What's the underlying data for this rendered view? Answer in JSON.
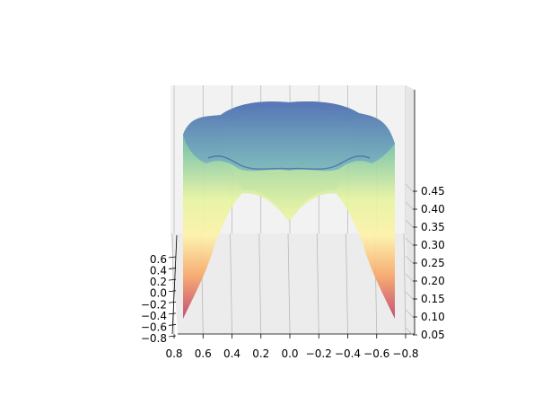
{
  "chart_data": {
    "type": "surface3d",
    "colormap": "Spectral",
    "x_axis": {
      "label": "",
      "ticks": [
        "0.8",
        "0.6",
        "0.4",
        "0.2",
        "0.0",
        "−0.2",
        "−0.4",
        "−0.6",
        "−0.8"
      ],
      "range": [
        -0.8,
        0.8
      ]
    },
    "y_axis": {
      "label": "",
      "ticks": [
        "−0.8",
        "−0.6",
        "−0.4",
        "−0.2",
        "0.0",
        "0.2",
        "0.4",
        "0.6"
      ],
      "range": [
        -0.8,
        0.8
      ]
    },
    "z_axis": {
      "label": "",
      "ticks": [
        "0.05",
        "0.10",
        "0.15",
        "0.20",
        "0.25",
        "0.30",
        "0.35",
        "0.40",
        "0.45"
      ],
      "range": [
        0.05,
        0.45
      ]
    },
    "surface_profile": {
      "description_values": "approximate z values of the surface rim and center",
      "rim_max_z": 0.47,
      "center_z": 0.33,
      "corner_min_z": 0.08
    },
    "grid": true
  }
}
